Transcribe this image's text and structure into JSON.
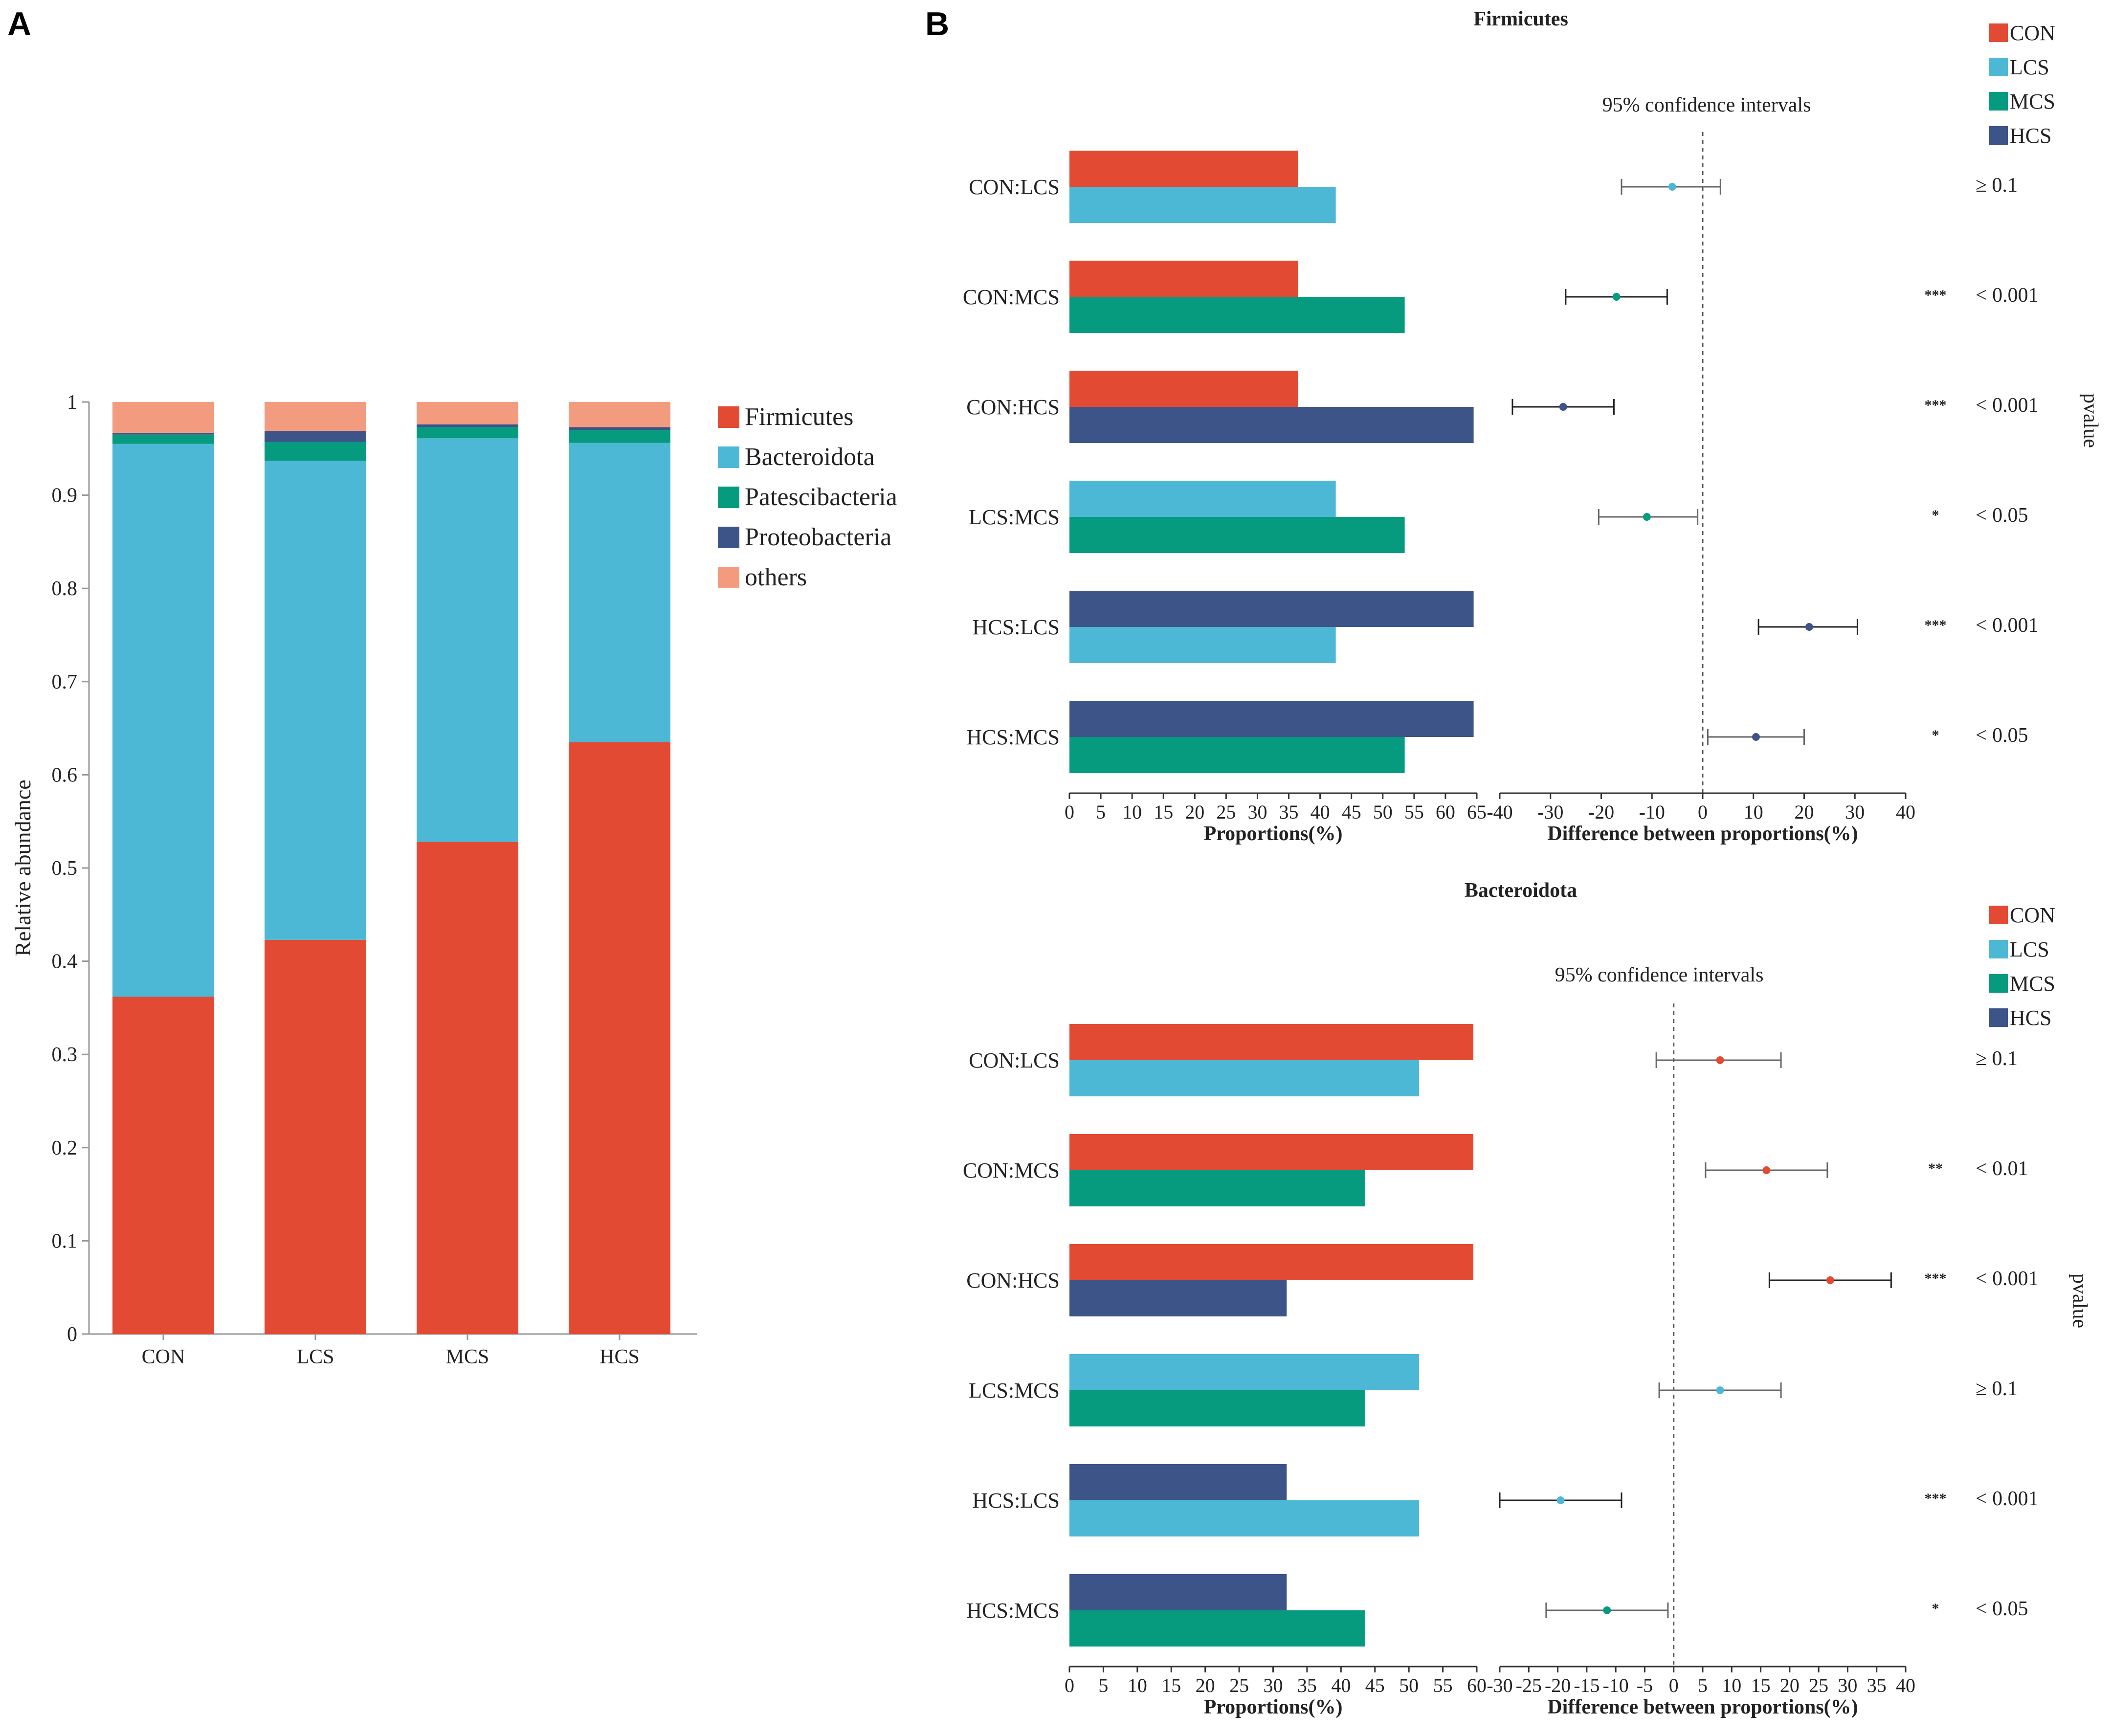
{
  "panel_labels": [
    "A",
    "B"
  ],
  "colors": {
    "CON": "#e34a33",
    "LCS": "#4db8d5",
    "MCS": "#069b7f",
    "HCS": "#3c5488",
    "Firmicutes": "#e34a33",
    "Bacteroidota": "#4db8d5",
    "Patescibacteria": "#069b7f",
    "Proteobacteria": "#3c5488",
    "others": "#f39b7f"
  },
  "chart_data": [
    {
      "type": "bar",
      "stacked": true,
      "title": "",
      "xlabel": "",
      "ylabel": "Relative abundance",
      "ylim": [
        0,
        1
      ],
      "yticks": [
        "0",
        "0.1",
        "0.2",
        "0.3",
        "0.4",
        "0.5",
        "0.6",
        "0.7",
        "0.8",
        "0.9",
        "1"
      ],
      "categories": [
        "CON",
        "LCS",
        "MCS",
        "HCS"
      ],
      "series": [
        {
          "name": "Firmicutes",
          "values": [
            0.362,
            0.423,
            0.528,
            0.635
          ]
        },
        {
          "name": "Bacteroidota",
          "values": [
            0.593,
            0.514,
            0.433,
            0.321
          ]
        },
        {
          "name": "Patescibacteria",
          "values": [
            0.01,
            0.02,
            0.012,
            0.014
          ]
        },
        {
          "name": "Proteobacteria",
          "values": [
            0.002,
            0.012,
            0.003,
            0.003
          ]
        },
        {
          "name": "others",
          "values": [
            0.033,
            0.031,
            0.024,
            0.027
          ]
        }
      ],
      "legend": [
        "Firmicutes",
        "Bacteroidota",
        "Patescibacteria",
        "Proteobacteria",
        "others"
      ]
    },
    {
      "type": "bar",
      "subtype": "extended-error-bar",
      "title": "Firmicutes",
      "ci_title": "95% confidence intervals",
      "legend": [
        "CON",
        "LCS",
        "MCS",
        "HCS"
      ],
      "pvalue_label": "pvalue",
      "xlabel_left": "Proportions(%)",
      "xlabel_right": "Difference between proportions(%)",
      "left_xlim": [
        0,
        65
      ],
      "left_ticks": [
        "0",
        "5",
        "10",
        "15",
        "20",
        "25",
        "30",
        "35",
        "40",
        "45",
        "50",
        "55",
        "60",
        "65"
      ],
      "right_xlim": [
        -40,
        40
      ],
      "right_ticks": [
        "-40",
        "-30",
        "-20",
        "-10",
        "0",
        "10",
        "20",
        "30",
        "40"
      ],
      "comparisons": [
        {
          "label": "CON:LCS",
          "g1": "CON",
          "v1": 36.5,
          "g2": "LCS",
          "v2": 42.5,
          "diff": -6.0,
          "lo": -16.0,
          "hi": 3.5,
          "sig": "",
          "p": "≥ 0.1"
        },
        {
          "label": "CON:MCS",
          "g1": "CON",
          "v1": 36.5,
          "g2": "MCS",
          "v2": 53.5,
          "diff": -17.0,
          "lo": -27.0,
          "hi": -7.0,
          "sig": "***",
          "p": "< 0.001"
        },
        {
          "label": "CON:HCS",
          "g1": "CON",
          "v1": 36.5,
          "g2": "HCS",
          "v2": 64.5,
          "diff": -27.5,
          "lo": -37.5,
          "hi": -17.5,
          "sig": "***",
          "p": "< 0.001"
        },
        {
          "label": "LCS:MCS",
          "g1": "LCS",
          "v1": 42.5,
          "g2": "MCS",
          "v2": 53.5,
          "diff": -11.0,
          "lo": -20.5,
          "hi": -1.0,
          "sig": "*",
          "p": "< 0.05"
        },
        {
          "label": "HCS:LCS",
          "g1": "HCS",
          "v1": 64.5,
          "g2": "LCS",
          "v2": 42.5,
          "diff": 21.0,
          "lo": 11.0,
          "hi": 30.5,
          "sig": "***",
          "p": "< 0.001"
        },
        {
          "label": "HCS:MCS",
          "g1": "HCS",
          "v1": 64.5,
          "g2": "MCS",
          "v2": 53.5,
          "diff": 10.5,
          "lo": 1.0,
          "hi": 20.0,
          "sig": "*",
          "p": "< 0.05"
        }
      ]
    },
    {
      "type": "bar",
      "subtype": "extended-error-bar",
      "title": "Bacteroidota",
      "ci_title": "95% confidence intervals",
      "legend": [
        "CON",
        "LCS",
        "MCS",
        "HCS"
      ],
      "pvalue_label": "pvalue",
      "xlabel_left": "Proportions(%)",
      "xlabel_right": "Difference between proportions(%)",
      "left_xlim": [
        0,
        60
      ],
      "left_ticks": [
        "0",
        "5",
        "10",
        "15",
        "20",
        "25",
        "30",
        "35",
        "40",
        "45",
        "50",
        "55",
        "60"
      ],
      "right_xlim": [
        -30,
        40
      ],
      "right_ticks": [
        "-30",
        "-25",
        "-20",
        "-15",
        "-10",
        "-5",
        "0",
        "5",
        "10",
        "15",
        "20",
        "25",
        "30",
        "35",
        "40"
      ],
      "comparisons": [
        {
          "label": "CON:LCS",
          "g1": "CON",
          "v1": 59.5,
          "g2": "LCS",
          "v2": 51.5,
          "diff": 8.0,
          "lo": -3.0,
          "hi": 18.5,
          "sig": "",
          "p": "≥ 0.1"
        },
        {
          "label": "CON:MCS",
          "g1": "CON",
          "v1": 59.5,
          "g2": "MCS",
          "v2": 43.5,
          "diff": 16.0,
          "lo": 5.5,
          "hi": 26.5,
          "sig": "**",
          "p": "< 0.01"
        },
        {
          "label": "CON:HCS",
          "g1": "CON",
          "v1": 59.5,
          "g2": "HCS",
          "v2": 32.0,
          "diff": 27.0,
          "lo": 16.5,
          "hi": 37.5,
          "sig": "***",
          "p": "< 0.001"
        },
        {
          "label": "LCS:MCS",
          "g1": "LCS",
          "v1": 51.5,
          "g2": "MCS",
          "v2": 43.5,
          "diff": 8.0,
          "lo": -2.5,
          "hi": 18.5,
          "sig": "",
          "p": "≥ 0.1"
        },
        {
          "label": "HCS:LCS",
          "g1": "HCS",
          "v1": 32.0,
          "g2": "LCS",
          "v2": 51.5,
          "diff": -19.5,
          "lo": -30.0,
          "hi": -9.0,
          "sig": "***",
          "p": "< 0.001"
        },
        {
          "label": "HCS:MCS",
          "g1": "HCS",
          "v1": 32.0,
          "g2": "MCS",
          "v2": 43.5,
          "diff": -11.5,
          "lo": -22.0,
          "hi": -1.0,
          "sig": "*",
          "p": "< 0.05"
        }
      ]
    }
  ]
}
